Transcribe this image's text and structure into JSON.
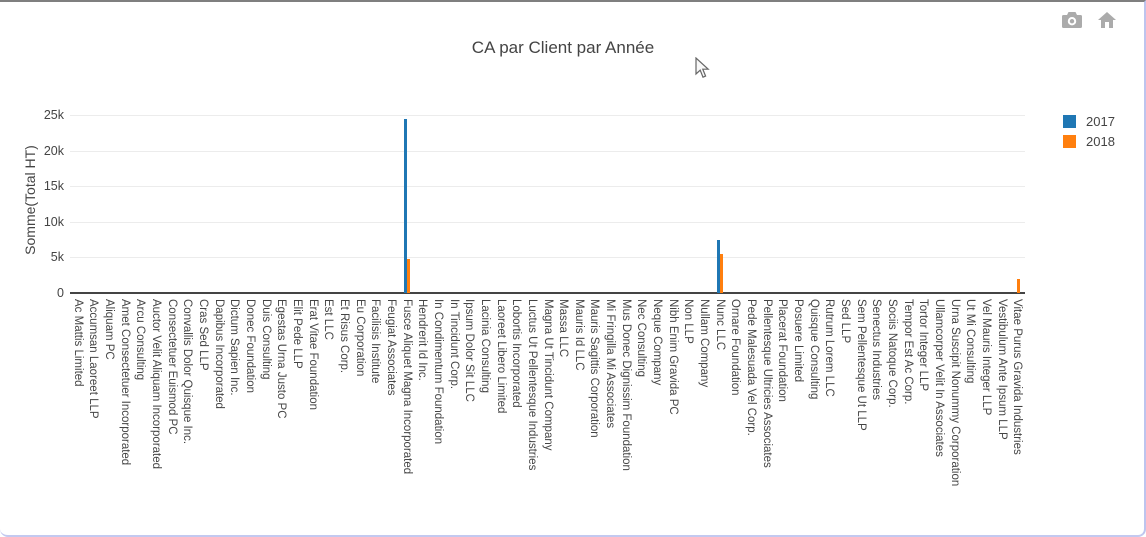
{
  "panel": {
    "background": "#ffffff",
    "top_border_color": "#7f7f7f",
    "side_border_color": "#c3c9f0",
    "toolbar_icons": [
      "camera-icon",
      "home-icon"
    ]
  },
  "chart_data": {
    "type": "bar",
    "title": "CA par Client par Année",
    "xlabel": "",
    "ylabel": "Somme(Total HT)",
    "ylim": [
      0,
      25000
    ],
    "yticks": [
      0,
      5000,
      10000,
      15000,
      20000,
      25000
    ],
    "ytick_labels": [
      "0",
      "5k",
      "10k",
      "15k",
      "20k",
      "25k"
    ],
    "grid": true,
    "legend_position": "right",
    "categories": [
      "Ac Mattis Limited",
      "Accumsan Laoreet LLP",
      "Aliquam PC",
      "Amet Consectetuer Incorporated",
      "Arcu Consulting",
      "Auctor Velit Aliquam Incorporated",
      "Consectetuer Euismod PC",
      "Convallis Dolor Quisque Inc.",
      "Cras Sed LLP",
      "Dapibus Incorporated",
      "Dictum Sapien Inc.",
      "Donec Foundation",
      "Duis Consulting",
      "Egestas Urna Justo PC",
      "Elit Pede LLP",
      "Erat Vitae Foundation",
      "Est LLC",
      "Et Risus Corp.",
      "Eu Corporation",
      "Facilisis Institute",
      "Feugiat Associates",
      "Fusce Aliquet Magna Incorporated",
      "Hendrerit Id Inc.",
      "In Condimentum Foundation",
      "In Tincidunt Corp.",
      "Ipsum Dolor Sit LLC",
      "Lacinia Consulting",
      "Laoreet Libero Limited",
      "Lobortis Incorporated",
      "Luctus Ut Pellentesque Industries",
      "Magna Ut Tincidunt Company",
      "Massa LLC",
      "Mauris Id LLC",
      "Mauris Sagittis Corporation",
      "Mi Fringilla Mi Associates",
      "Mus Donec Dignissim Foundation",
      "Nec Consulting",
      "Neque Company",
      "Nibh Enim Gravida PC",
      "Non LLP",
      "Nullam Company",
      "Nunc LLC",
      "Ornare Foundation",
      "Pede Malesuada Vel Corp.",
      "Pellentesque Ultricies Associates",
      "Placerat Foundation",
      "Posuere Limited",
      "Quisque Consulting",
      "Rutrum Lorem LLC",
      "Sed LLP",
      "Sem Pellentesque Ut LLP",
      "Senectus Industries",
      "Sociis Natoque Corp.",
      "Tempor Est Ac Corp.",
      "Tortor Integer LLP",
      "Ullamcorper Velit In Associates",
      "Urna Suscipit Nonummy Corporation",
      "Ut Mi Consulting",
      "Vel Mauris Integer LLP",
      "Vestibulum Ante Ipsum LLP",
      "Vitae Purus Gravida Industries"
    ],
    "series": [
      {
        "name": "2017",
        "color": "#1f77b4",
        "values": [
          0,
          0,
          0,
          0,
          0,
          0,
          0,
          0,
          0,
          0,
          0,
          0,
          0,
          0,
          0,
          0,
          0,
          0,
          0,
          0,
          0,
          24400,
          0,
          0,
          0,
          0,
          0,
          0,
          0,
          0,
          0,
          0,
          0,
          0,
          0,
          0,
          0,
          0,
          0,
          0,
          0,
          7500,
          0,
          0,
          0,
          0,
          0,
          0,
          0,
          0,
          0,
          0,
          0,
          0,
          0,
          0,
          0,
          0,
          0,
          0,
          0
        ]
      },
      {
        "name": "2018",
        "color": "#ff7f0e",
        "values": [
          0,
          0,
          0,
          0,
          0,
          0,
          0,
          0,
          0,
          0,
          0,
          0,
          0,
          0,
          0,
          0,
          0,
          0,
          0,
          0,
          0,
          4800,
          0,
          0,
          0,
          0,
          0,
          0,
          0,
          0,
          0,
          0,
          0,
          0,
          0,
          0,
          0,
          0,
          0,
          0,
          0,
          5500,
          0,
          0,
          0,
          0,
          0,
          0,
          0,
          0,
          0,
          0,
          0,
          0,
          0,
          0,
          0,
          0,
          0,
          0,
          2000
        ]
      }
    ]
  }
}
